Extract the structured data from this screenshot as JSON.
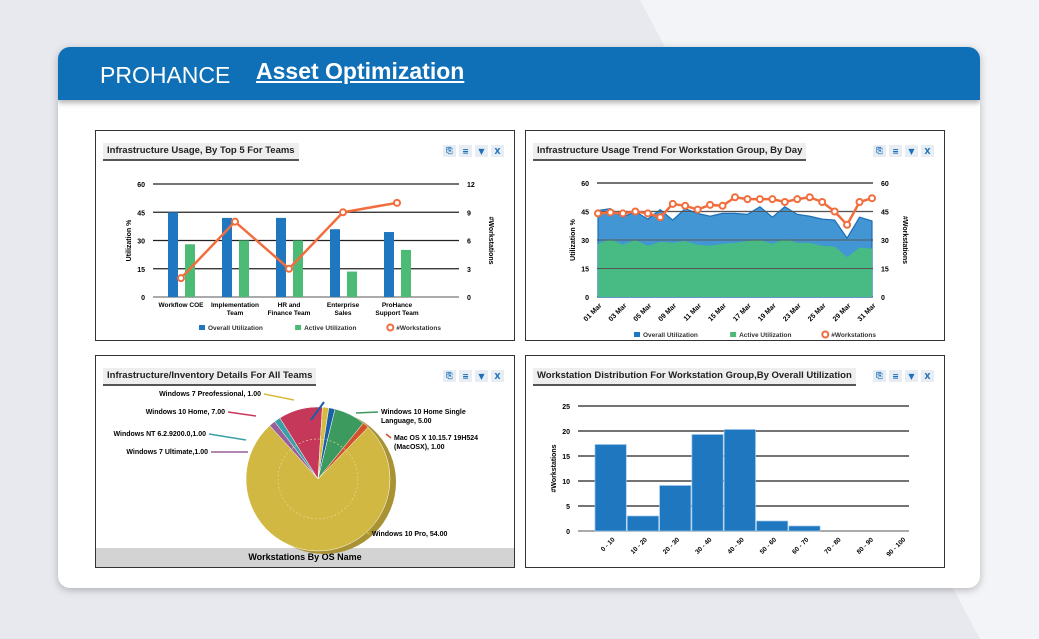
{
  "header": {
    "logo": "PROHANCE",
    "title": "Asset Optimization"
  },
  "colors": {
    "header": "#0f70b7",
    "overall": "#1f77c0",
    "active": "#4cbb75",
    "workstations": "#f26d3d"
  },
  "tools": {
    "icons": [
      "export-icon",
      "menu-icon",
      "filter-icon",
      "close-icon"
    ],
    "close_label": "X"
  },
  "panels": [
    {
      "title": "Infrastructure Usage, By Top 5 For Teams",
      "chart_data": {
        "type": "bar",
        "categories": [
          [
            "Workflow COE"
          ],
          [
            "Implementation",
            "Team"
          ],
          [
            "HR and",
            "Finance Team"
          ],
          [
            "Enterprise",
            "Sales"
          ],
          [
            "ProHance",
            "Support Team"
          ]
        ],
        "series": [
          {
            "name": "Overall Utilization",
            "type": "bar",
            "axis": "left",
            "values": [
              45,
              42,
              42,
              36,
              34.5
            ]
          },
          {
            "name": "Active Utilization",
            "type": "bar",
            "axis": "left",
            "values": [
              28,
              30,
              30,
              13.5,
              25
            ]
          },
          {
            "name": "#Workstations",
            "type": "line",
            "axis": "right",
            "values": [
              2,
              8,
              3,
              9,
              10
            ]
          }
        ],
        "ylabel": "Utilization %",
        "y2label": "#Workstations",
        "ylim": [
          0,
          60
        ],
        "y2lim": [
          0,
          12
        ],
        "yticks": [
          0,
          15,
          30,
          45,
          60
        ],
        "y2ticks": [
          0,
          3,
          6,
          9,
          12
        ],
        "grid": true,
        "legend": "bottom"
      }
    },
    {
      "title": "Infrastructure Usage Trend For Workstation Group, By Day",
      "chart_data": {
        "type": "area",
        "x_tick_labels": [
          "01 Mar",
          "03 Mar",
          "05 Mar",
          "09 Mar",
          "11 Mar",
          "15 Mar",
          "17 Mar",
          "19 Mar",
          "23 Mar",
          "25 Mar",
          "29 Mar",
          "31 Mar"
        ],
        "series": [
          {
            "name": "Overall Utilization",
            "type": "area",
            "axis": "left",
            "values": [
              45.5,
              46.5,
              42,
              45,
              41,
              46,
              40.5,
              46.5,
              44,
              42.5,
              44,
              44,
              43.5,
              47.5,
              42,
              47.5,
              43.5,
              42.5,
              41,
              40.5,
              31,
              42,
              40
            ]
          },
          {
            "name": "Active Utilization",
            "type": "area",
            "axis": "left",
            "values": [
              28,
              30.5,
              27.5,
              30,
              27,
              29,
              28.5,
              29.5,
              27.5,
              27,
              28,
              28.5,
              29.5,
              30,
              28,
              30.5,
              28.5,
              28.5,
              27,
              26.5,
              21,
              26,
              25.5
            ]
          },
          {
            "name": "#Workstations",
            "type": "line",
            "axis": "right",
            "values": [
              44,
              44.5,
              44,
              45,
              44,
              42,
              49,
              48,
              46,
              48.5,
              48,
              52.5,
              51.5,
              51.5,
              51.5,
              50,
              51.5,
              52.5,
              50,
              45,
              38,
              50,
              52
            ]
          }
        ],
        "ylabel": "Utilization %",
        "y2label": "#Workstations",
        "ylim": [
          0,
          60
        ],
        "y2lim": [
          0,
          60
        ],
        "yticks": [
          0,
          15,
          30,
          45,
          60
        ],
        "y2ticks": [
          0,
          15,
          30,
          45,
          60
        ],
        "grid": true,
        "legend": "bottom"
      }
    },
    {
      "title": "Infrastructure/Inventory Details For All Teams",
      "footer": "Workstations By OS Name",
      "chart_data": {
        "type": "pie",
        "slices": [
          {
            "label": "",
            "value": 1,
            "color": "#1a5fa8"
          },
          {
            "label": "Windows 10 Home Single Language, 5.00",
            "value": 5,
            "color": "#3d9a5e"
          },
          {
            "label": "Mac OS X 10.15.7 19H524 (MacOSX), 1.00",
            "value": 1,
            "color": "#d2522a"
          },
          {
            "label": "Windows 10 Pro, 54.00",
            "value": 54,
            "color": "#d1b843"
          },
          {
            "label": "Windows 7 Ultimate,1.00",
            "value": 1,
            "color": "#9a5e98"
          },
          {
            "label": "Windows NT 6.2.9200.0,1.00",
            "value": 1,
            "color": "#3aa0a8"
          },
          {
            "label": "Windows 10 Home, 7.00",
            "value": 7,
            "color": "#c6385a"
          },
          {
            "label": "Windows 7 Preofessional, 1.00",
            "value": 1,
            "color": "#d7bb3e"
          }
        ]
      }
    },
    {
      "title": "Workstation Distribution For Workstation Group,By Overall Utilization",
      "chart_data": {
        "type": "bar",
        "categories": [
          "0 - 10",
          "10 - 20",
          "20 - 30",
          "30 - 40",
          "40 - 50",
          "50 - 60",
          "60 - 70",
          "70 - 80",
          "80 - 90",
          "90 - 100"
        ],
        "values": [
          17.3,
          3,
          9.1,
          19.3,
          20.3,
          2,
          1,
          0,
          0,
          0
        ],
        "ylabel": "#Workstations",
        "ylim": [
          0,
          25
        ],
        "yticks": [
          0,
          5,
          10,
          15,
          20,
          25
        ],
        "grid": true
      }
    }
  ]
}
